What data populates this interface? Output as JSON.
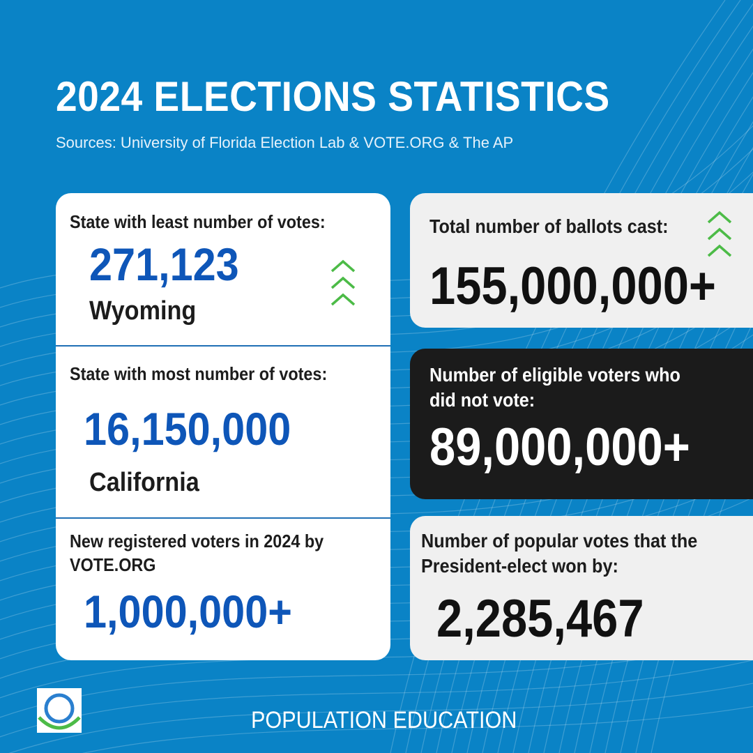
{
  "header": {
    "title": "2024 ELECTIONS STATISTICS",
    "sources": "Sources: University of Florida Election Lab & VOTE.ORG & The AP"
  },
  "left_card": {
    "least": {
      "label": "State with least number of votes:",
      "value": "271,123",
      "state": "Wyoming"
    },
    "most": {
      "label": "State with most number of votes:",
      "value": "16,150,000",
      "state": "California"
    },
    "new_registered": {
      "label_line1": "New registered voters in 2024 by",
      "label_line2": "VOTE.ORG",
      "value": "1,000,000+"
    }
  },
  "right_cards": {
    "ballots": {
      "label": "Total number of ballots cast:",
      "value": "155,000,000+"
    },
    "did_not_vote": {
      "label_line1": "Number of eligible voters who",
      "label_line2": "did not vote:",
      "value": "89,000,000+"
    },
    "popular_margin": {
      "label_line1": "Number of popular votes that the",
      "label_line2": "President-elect won by:",
      "value": "2,285,467"
    }
  },
  "footer": {
    "organization": "POPULATION EDUCATION"
  },
  "colors": {
    "background": "#0a83c6",
    "number_blue": "#0e56b8",
    "chevron_green": "#4cbb47",
    "dark_card": "#1b1b1b",
    "light_card": "#f0f0f0"
  },
  "icons": {
    "chevrons": "triple-chevron-up-icon",
    "logo": "population-education-logo"
  }
}
